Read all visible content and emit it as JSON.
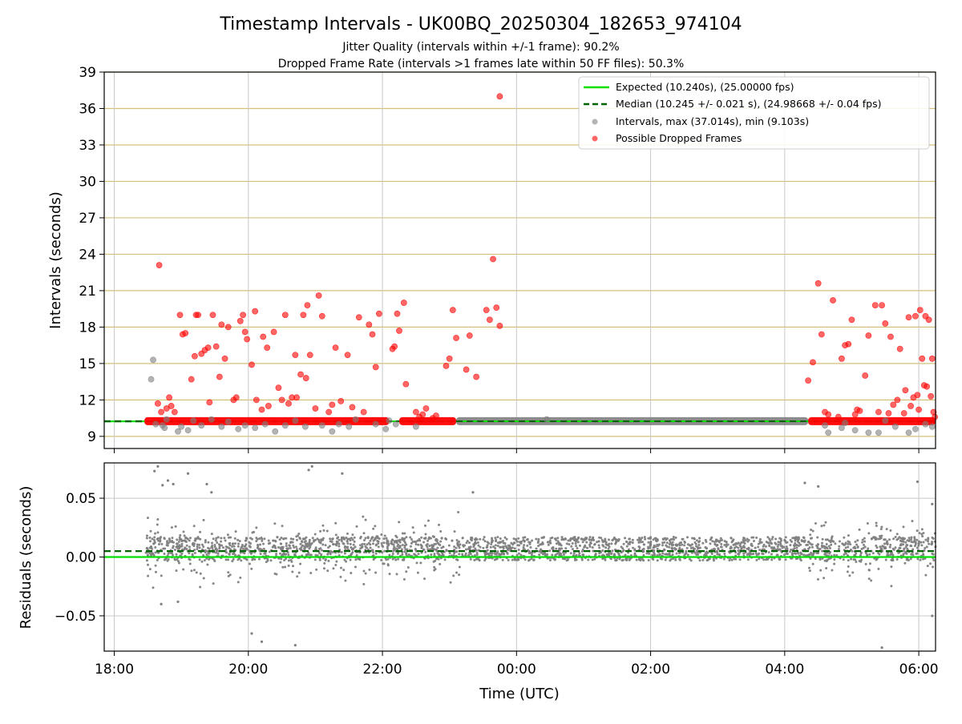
{
  "figure": {
    "title": "Timestamp Intervals - UK00BQ_20250304_182653_974104",
    "subtitle_1": "Jitter Quality (intervals within +/-1 frame): 90.2%",
    "subtitle_2": "Dropped Frame Rate (intervals >1 frames late within 50 FF files): 50.3%"
  },
  "colors": {
    "expected": "#00e000",
    "median": "#006400",
    "intervals": "#808080",
    "dropped": "#ff0000",
    "hgrid": "#d4c07a",
    "vgrid": "#c8c8c8"
  },
  "chart_data": [
    {
      "type": "scatter",
      "panel": "intervals",
      "ylabel": "Intervals (seconds)",
      "xlabel": "",
      "x_unit": "hours since 18:00 UTC (2025-03-04)",
      "xlim": [
        -0.15,
        12.25
      ],
      "ylim": [
        8,
        39
      ],
      "yticks": [
        9,
        12,
        15,
        18,
        21,
        24,
        27,
        30,
        33,
        36,
        39
      ],
      "xticks": [
        {
          "v": 0,
          "label": "18:00"
        },
        {
          "v": 2,
          "label": "20:00"
        },
        {
          "v": 4,
          "label": "22:00"
        },
        {
          "v": 6,
          "label": "00:00"
        },
        {
          "v": 8,
          "label": "02:00"
        },
        {
          "v": 10,
          "label": "04:00"
        },
        {
          "v": 12,
          "label": "06:00"
        }
      ],
      "grid": true,
      "legend_position": "top-right",
      "lines": [
        {
          "name": "Expected (10.240s), (25.00000 fps)",
          "y": 10.24,
          "style": "solid"
        },
        {
          "name": "Median (10.245 +/- 0.021 s), (24.98668 +/- 0.04 fps)",
          "y": 10.245,
          "style": "dashed"
        }
      ],
      "dense_bands": [
        {
          "series": "Possible Dropped Frames",
          "x0": 0.45,
          "x1": 4.1,
          "y": 10.25
        },
        {
          "series": "Possible Dropped Frames",
          "x0": 4.25,
          "x1": 5.1,
          "y": 10.25
        },
        {
          "series": "Intervals, max (37.014s), min (9.103s)",
          "x0": 5.1,
          "x1": 10.35,
          "y": 10.25
        },
        {
          "series": "Possible Dropped Frames",
          "x0": 10.35,
          "x1": 12.25,
          "y": 10.25
        }
      ],
      "series": [
        {
          "name": "Intervals, max (37.014s), min (9.103s)",
          "points": [
            [
              0.55,
              13.7
            ],
            [
              0.58,
              15.3
            ],
            [
              0.62,
              10.0
            ],
            [
              0.72,
              9.9
            ],
            [
              0.75,
              9.7
            ],
            [
              0.78,
              10.4
            ],
            [
              0.95,
              9.4
            ],
            [
              1.0,
              9.8
            ],
            [
              1.1,
              9.5
            ],
            [
              1.18,
              10.3
            ],
            [
              1.3,
              9.9
            ],
            [
              1.45,
              10.4
            ],
            [
              1.6,
              9.8
            ],
            [
              1.7,
              10.2
            ],
            [
              1.85,
              9.6
            ],
            [
              1.95,
              9.9
            ],
            [
              2.1,
              9.7
            ],
            [
              2.25,
              10.0
            ],
            [
              2.4,
              9.4
            ],
            [
              2.55,
              9.9
            ],
            [
              2.7,
              10.3
            ],
            [
              2.85,
              9.8
            ],
            [
              3.1,
              9.9
            ],
            [
              3.25,
              9.4
            ],
            [
              3.35,
              10.0
            ],
            [
              3.5,
              9.8
            ],
            [
              3.6,
              10.4
            ],
            [
              3.9,
              10.0
            ],
            [
              4.05,
              9.6
            ],
            [
              4.1,
              10.3
            ],
            [
              4.2,
              10.0
            ],
            [
              4.5,
              9.8
            ],
            [
              6.45,
              10.4
            ],
            [
              10.6,
              9.9
            ],
            [
              10.65,
              9.3
            ],
            [
              10.85,
              9.7
            ],
            [
              10.9,
              10.1
            ],
            [
              11.05,
              9.5
            ],
            [
              11.25,
              9.3
            ],
            [
              11.4,
              9.3
            ],
            [
              11.5,
              10.3
            ],
            [
              11.65,
              9.8
            ],
            [
              11.85,
              9.3
            ],
            [
              11.95,
              9.6
            ],
            [
              12.1,
              10.0
            ],
            [
              12.2,
              9.8
            ]
          ]
        },
        {
          "name": "Possible Dropped Frames",
          "points": [
            [
              0.67,
              23.1
            ],
            [
              0.65,
              11.7
            ],
            [
              0.7,
              11.0
            ],
            [
              0.78,
              11.3
            ],
            [
              0.82,
              12.2
            ],
            [
              0.85,
              11.5
            ],
            [
              0.9,
              11.0
            ],
            [
              0.98,
              19.0
            ],
            [
              1.02,
              17.4
            ],
            [
              1.06,
              17.5
            ],
            [
              1.15,
              13.7
            ],
            [
              1.2,
              15.6
            ],
            [
              1.22,
              19.0
            ],
            [
              1.25,
              19.0
            ],
            [
              1.3,
              15.8
            ],
            [
              1.35,
              16.1
            ],
            [
              1.4,
              16.3
            ],
            [
              1.42,
              11.8
            ],
            [
              1.47,
              19.0
            ],
            [
              1.52,
              16.4
            ],
            [
              1.57,
              13.9
            ],
            [
              1.6,
              18.2
            ],
            [
              1.65,
              15.4
            ],
            [
              1.7,
              18.0
            ],
            [
              1.78,
              12.0
            ],
            [
              1.82,
              12.2
            ],
            [
              1.88,
              18.5
            ],
            [
              1.92,
              19.0
            ],
            [
              1.95,
              17.6
            ],
            [
              1.98,
              17.0
            ],
            [
              2.05,
              14.9
            ],
            [
              2.1,
              19.3
            ],
            [
              2.12,
              12.0
            ],
            [
              2.2,
              11.2
            ],
            [
              2.22,
              17.2
            ],
            [
              2.28,
              16.3
            ],
            [
              2.3,
              11.5
            ],
            [
              2.38,
              17.6
            ],
            [
              2.45,
              13.0
            ],
            [
              2.5,
              12.0
            ],
            [
              2.55,
              19.0
            ],
            [
              2.6,
              11.7
            ],
            [
              2.65,
              12.2
            ],
            [
              2.7,
              15.7
            ],
            [
              2.72,
              12.2
            ],
            [
              2.78,
              14.1
            ],
            [
              2.82,
              19.0
            ],
            [
              2.86,
              13.8
            ],
            [
              2.88,
              19.8
            ],
            [
              2.92,
              15.7
            ],
            [
              3.0,
              11.3
            ],
            [
              3.05,
              20.6
            ],
            [
              3.1,
              18.9
            ],
            [
              3.2,
              11.0
            ],
            [
              3.25,
              11.6
            ],
            [
              3.3,
              16.3
            ],
            [
              3.38,
              11.9
            ],
            [
              3.48,
              15.7
            ],
            [
              3.55,
              11.4
            ],
            [
              3.65,
              18.8
            ],
            [
              3.72,
              11.0
            ],
            [
              3.8,
              18.2
            ],
            [
              3.85,
              17.4
            ],
            [
              3.9,
              14.7
            ],
            [
              3.95,
              19.1
            ],
            [
              4.15,
              16.2
            ],
            [
              4.18,
              16.4
            ],
            [
              4.22,
              19.1
            ],
            [
              4.25,
              17.7
            ],
            [
              4.32,
              20.0
            ],
            [
              4.35,
              13.3
            ],
            [
              4.5,
              11.0
            ],
            [
              4.55,
              10.6
            ],
            [
              4.6,
              10.8
            ],
            [
              4.65,
              11.3
            ],
            [
              4.75,
              10.5
            ],
            [
              4.8,
              10.7
            ],
            [
              4.95,
              14.8
            ],
            [
              5.0,
              15.4
            ],
            [
              5.05,
              19.4
            ],
            [
              5.1,
              17.1
            ],
            [
              5.25,
              14.5
            ],
            [
              5.3,
              17.3
            ],
            [
              5.4,
              13.9
            ],
            [
              5.55,
              19.4
            ],
            [
              5.6,
              18.6
            ],
            [
              5.65,
              23.6
            ],
            [
              5.7,
              19.6
            ],
            [
              5.75,
              18.1
            ],
            [
              5.75,
              37.0
            ],
            [
              10.35,
              13.6
            ],
            [
              10.42,
              15.1
            ],
            [
              10.5,
              21.6
            ],
            [
              10.55,
              17.4
            ],
            [
              10.6,
              11.0
            ],
            [
              10.65,
              10.8
            ],
            [
              10.72,
              20.2
            ],
            [
              10.8,
              10.6
            ],
            [
              10.85,
              15.4
            ],
            [
              10.9,
              16.5
            ],
            [
              10.95,
              16.6
            ],
            [
              11.0,
              18.6
            ],
            [
              11.05,
              10.8
            ],
            [
              11.08,
              11.2
            ],
            [
              11.12,
              11.1
            ],
            [
              11.2,
              14.0
            ],
            [
              11.25,
              17.3
            ],
            [
              11.35,
              19.8
            ],
            [
              11.4,
              11.0
            ],
            [
              11.45,
              19.8
            ],
            [
              11.5,
              18.3
            ],
            [
              11.55,
              10.9
            ],
            [
              11.58,
              17.2
            ],
            [
              11.62,
              11.6
            ],
            [
              11.68,
              12.0
            ],
            [
              11.72,
              16.2
            ],
            [
              11.78,
              10.9
            ],
            [
              11.8,
              12.8
            ],
            [
              11.85,
              18.8
            ],
            [
              11.88,
              11.5
            ],
            [
              11.92,
              12.2
            ],
            [
              11.95,
              18.9
            ],
            [
              11.98,
              12.4
            ],
            [
              12.0,
              11.2
            ],
            [
              12.02,
              19.4
            ],
            [
              12.05,
              15.4
            ],
            [
              12.08,
              13.2
            ],
            [
              12.1,
              18.9
            ],
            [
              12.12,
              13.1
            ],
            [
              12.15,
              18.6
            ],
            [
              12.18,
              12.3
            ],
            [
              12.2,
              15.4
            ],
            [
              12.22,
              11.0
            ],
            [
              12.24,
              10.6
            ]
          ]
        }
      ]
    },
    {
      "type": "scatter",
      "panel": "residuals",
      "ylabel": "Residuals (seconds)",
      "xlabel": "Time (UTC)",
      "xlim": [
        -0.15,
        12.25
      ],
      "ylim": [
        -0.08,
        0.08
      ],
      "yticks": [
        {
          "v": -0.05,
          "label": "−0.05"
        },
        {
          "v": 0.0,
          "label": "0.00"
        },
        {
          "v": 0.05,
          "label": "0.05"
        }
      ],
      "xticks": [
        {
          "v": 0,
          "label": "18:00"
        },
        {
          "v": 2,
          "label": "20:00"
        },
        {
          "v": 4,
          "label": "22:00"
        },
        {
          "v": 6,
          "label": "00:00"
        },
        {
          "v": 8,
          "label": "02:00"
        },
        {
          "v": 10,
          "label": "04:00"
        },
        {
          "v": 12,
          "label": "06:00"
        }
      ],
      "grid": true,
      "lines": [
        {
          "name": "expected",
          "y": 0.0,
          "style": "solid"
        },
        {
          "name": "median",
          "y": 0.005,
          "style": "dashed"
        }
      ],
      "point_density": {
        "x0": 0.45,
        "x1": 12.25,
        "count": 2600,
        "core_range": [
          -0.003,
          0.017
        ],
        "noisy_windows": [
          [
            0.45,
            5.2
          ],
          [
            10.3,
            12.25
          ]
        ],
        "noisy_scatter": 0.03
      },
      "series": [
        {
          "name": "residuals",
          "points": [
            [
              0.6,
              0.073
            ],
            [
              0.65,
              0.077
            ],
            [
              0.72,
              0.061
            ],
            [
              0.8,
              0.065
            ],
            [
              0.88,
              0.062
            ],
            [
              1.1,
              0.071
            ],
            [
              1.38,
              0.062
            ],
            [
              1.45,
              0.055
            ],
            [
              2.9,
              0.074
            ],
            [
              2.95,
              0.077
            ],
            [
              3.4,
              0.071
            ],
            [
              2.05,
              -0.065
            ],
            [
              2.2,
              -0.072
            ],
            [
              2.7,
              -0.075
            ],
            [
              5.35,
              0.055
            ],
            [
              10.3,
              0.063
            ],
            [
              10.5,
              0.06
            ],
            [
              11.45,
              -0.077
            ],
            [
              11.98,
              0.064
            ],
            [
              12.2,
              0.045
            ],
            [
              12.2,
              -0.05
            ],
            [
              0.7,
              -0.04
            ],
            [
              0.95,
              -0.038
            ]
          ]
        }
      ]
    }
  ]
}
